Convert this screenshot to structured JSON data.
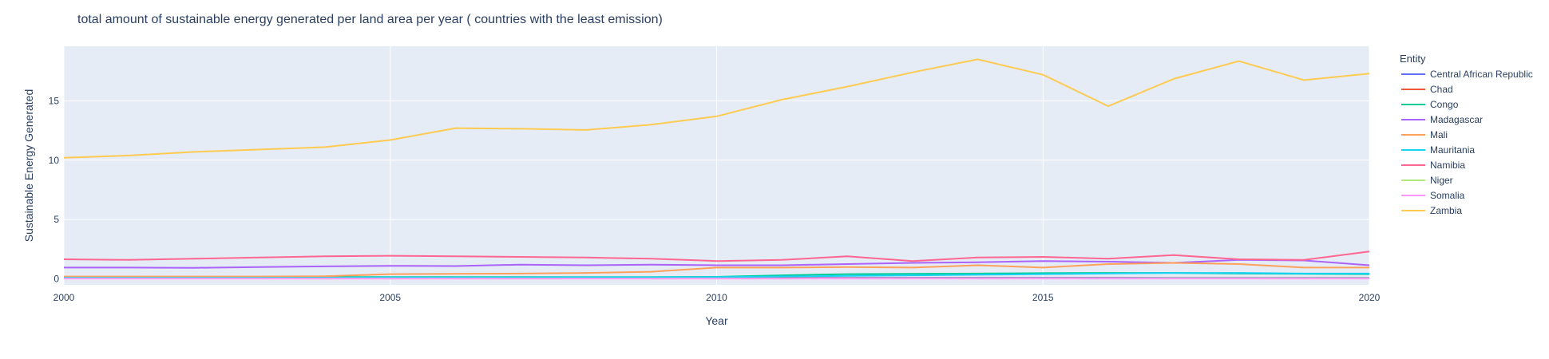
{
  "chart_data": {
    "type": "line",
    "title": "total amount of sustainable energy generated per land area per year ( countries with the least emission)",
    "xlabel": "Year",
    "ylabel": "Sustainable Energy Generated",
    "xlim": [
      2000,
      2020
    ],
    "ylim": [
      -0.5,
      19.6
    ],
    "x_ticks": [
      2000,
      2005,
      2010,
      2015,
      2020
    ],
    "y_ticks": [
      0,
      5,
      10,
      15
    ],
    "grid": true,
    "plot_background": "#e5ecf6",
    "legend_title": "Entity",
    "legend_position": "right",
    "x": [
      2000,
      2001,
      2002,
      2003,
      2004,
      2005,
      2006,
      2007,
      2008,
      2009,
      2010,
      2011,
      2012,
      2013,
      2014,
      2015,
      2016,
      2017,
      2018,
      2019,
      2020
    ],
    "series": [
      {
        "name": "Central African Republic",
        "color": "#636efa",
        "values": [
          0.08,
          0.08,
          0.08,
          0.08,
          0.08,
          0.08,
          0.08,
          0.08,
          0.08,
          0.08,
          0.08,
          0.09,
          0.09,
          0.09,
          0.09,
          0.09,
          0.09,
          0.09,
          0.09,
          0.09,
          0.09
        ]
      },
      {
        "name": "Chad",
        "color": "#ef553b",
        "values": [
          0.05,
          0.05,
          0.05,
          0.05,
          0.05,
          0.05,
          0.05,
          0.05,
          0.05,
          0.05,
          0.05,
          0.05,
          0.05,
          0.05,
          0.05,
          0.05,
          0.05,
          0.05,
          0.05,
          0.05,
          0.05
        ]
      },
      {
        "name": "Congo",
        "color": "#00cc96",
        "values": [
          0.15,
          0.15,
          0.15,
          0.15,
          0.15,
          0.15,
          0.15,
          0.15,
          0.16,
          0.16,
          0.17,
          0.3,
          0.4,
          0.42,
          0.45,
          0.48,
          0.5,
          0.5,
          0.45,
          0.42,
          0.4
        ]
      },
      {
        "name": "Madagascar",
        "color": "#ab63fa",
        "values": [
          0.95,
          0.95,
          0.93,
          1.0,
          1.05,
          1.1,
          1.08,
          1.2,
          1.15,
          1.2,
          1.15,
          1.15,
          1.25,
          1.35,
          1.4,
          1.5,
          1.45,
          1.35,
          1.6,
          1.55,
          1.15
        ]
      },
      {
        "name": "Mali",
        "color": "#ffa15a",
        "values": [
          0.2,
          0.2,
          0.2,
          0.2,
          0.22,
          0.4,
          0.42,
          0.45,
          0.5,
          0.6,
          0.95,
          0.95,
          1.0,
          0.95,
          1.15,
          0.95,
          1.25,
          1.35,
          1.25,
          0.95,
          0.95
        ]
      },
      {
        "name": "Mauritania",
        "color": "#19d3f3",
        "values": [
          0.1,
          0.1,
          0.1,
          0.1,
          0.1,
          0.12,
          0.12,
          0.12,
          0.13,
          0.13,
          0.15,
          0.2,
          0.25,
          0.3,
          0.35,
          0.4,
          0.45,
          0.5,
          0.5,
          0.45,
          0.45
        ]
      },
      {
        "name": "Namibia",
        "color": "#ff6692",
        "values": [
          1.65,
          1.6,
          1.7,
          1.8,
          1.9,
          1.95,
          1.9,
          1.85,
          1.8,
          1.7,
          1.5,
          1.6,
          1.9,
          1.5,
          1.8,
          1.85,
          1.7,
          2.0,
          1.65,
          1.6,
          2.3
        ]
      },
      {
        "name": "Niger",
        "color": "#b6e880",
        "values": [
          0.03,
          0.03,
          0.03,
          0.03,
          0.03,
          0.03,
          0.03,
          0.03,
          0.03,
          0.03,
          0.03,
          0.03,
          0.04,
          0.04,
          0.04,
          0.04,
          0.04,
          0.05,
          0.05,
          0.05,
          0.05
        ]
      },
      {
        "name": "Somalia",
        "color": "#ff97ff",
        "values": [
          0.02,
          0.02,
          0.02,
          0.02,
          0.02,
          0.02,
          0.02,
          0.02,
          0.02,
          0.02,
          0.02,
          0.02,
          0.02,
          0.02,
          0.02,
          0.02,
          0.02,
          0.02,
          0.02,
          0.02,
          0.02
        ]
      },
      {
        "name": "Zambia",
        "color": "#fecb52",
        "values": [
          10.2,
          10.4,
          10.7,
          10.9,
          11.1,
          11.7,
          12.7,
          12.65,
          12.55,
          13.0,
          13.7,
          15.1,
          16.2,
          17.4,
          18.5,
          17.2,
          14.55,
          16.85,
          18.35,
          16.75,
          17.3
        ]
      }
    ]
  }
}
